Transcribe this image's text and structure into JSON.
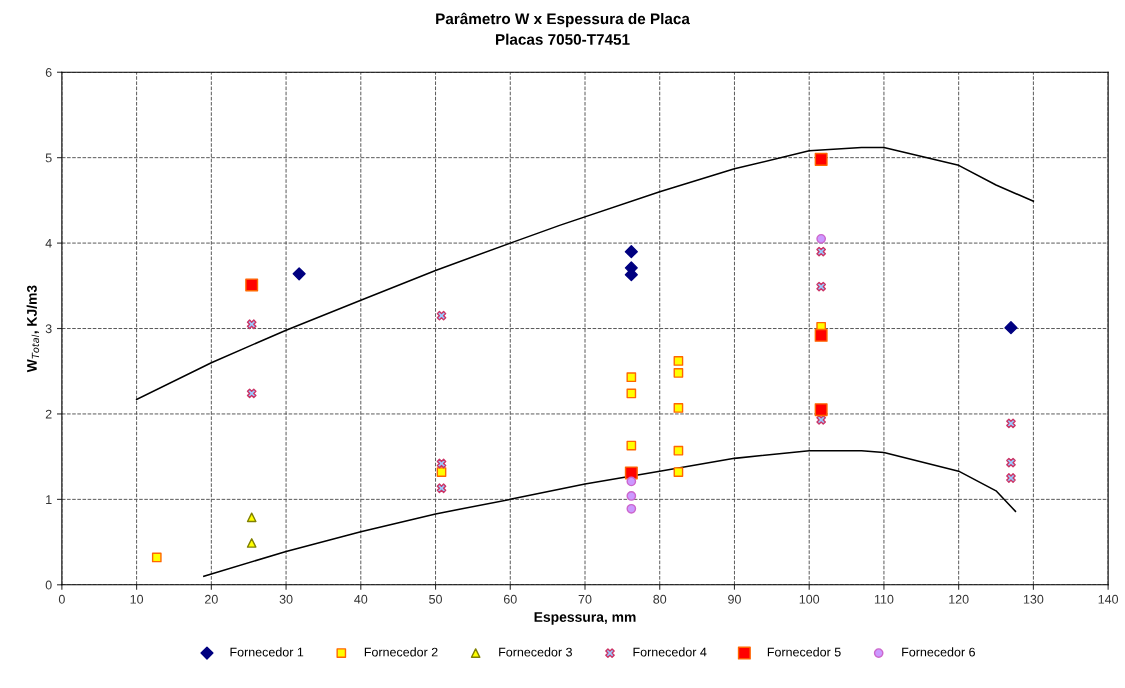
{
  "chart_data": {
    "type": "scatter",
    "title": "Parâmetro W x Espessura de Placa",
    "subtitle": "Placas 7050-T7451",
    "xlabel": "Espessura, mm",
    "ylabel": "W$_{Total}$, KJ/m3",
    "xlim": [
      0,
      140
    ],
    "xticks": [
      0,
      10,
      20,
      30,
      40,
      50,
      60,
      70,
      80,
      90,
      100,
      110,
      120,
      130,
      140
    ],
    "ylim": [
      0,
      6
    ],
    "yticks": [
      0,
      1,
      2,
      3,
      4,
      5,
      6
    ],
    "grid": true,
    "legend": "bottom",
    "series": [
      {
        "name": "Fornecedor 1",
        "color": "#000080",
        "marker": "diamond",
        "x": [
          31.75,
          76.2,
          76.2,
          76.2,
          127
        ],
        "values": [
          3.64,
          3.9,
          3.71,
          3.63,
          3.01
        ]
      },
      {
        "name": "Fornecedor 2",
        "color": "#ffff00",
        "marker": "square",
        "x": [
          12.7,
          50.8,
          76.2,
          76.2,
          76.2,
          82.5,
          82.5,
          82.5,
          82.5,
          82.5,
          101.6
        ],
        "values": [
          0.32,
          1.32,
          2.43,
          2.24,
          1.63,
          2.62,
          2.48,
          2.07,
          1.57,
          1.32,
          3.02
        ]
      },
      {
        "name": "Fornecedor 3",
        "color": "#ffff00",
        "marker": "triangle",
        "x": [
          25.4,
          25.4
        ],
        "values": [
          0.79,
          0.49
        ]
      },
      {
        "name": "Fornecedor 4",
        "color": "#99ccff",
        "marker": "cross",
        "x": [
          25.4,
          25.4,
          50.8,
          50.8,
          50.8,
          101.6,
          101.6,
          101.6,
          127,
          127,
          127
        ],
        "values": [
          3.05,
          2.24,
          3.15,
          1.42,
          1.13,
          3.9,
          3.49,
          1.93,
          1.89,
          1.43,
          1.25
        ]
      },
      {
        "name": "Fornecedor 5",
        "color": "#ff0000",
        "marker": "square",
        "x": [
          25.4,
          101.6,
          101.6,
          101.6,
          76.2
        ],
        "values": [
          3.51,
          4.98,
          2.92,
          2.05,
          1.31
        ]
      },
      {
        "name": "Fornecedor 6",
        "color": "#cc99ff",
        "marker": "circle",
        "x": [
          101.6,
          76.2,
          76.2,
          76.2
        ],
        "values": [
          4.05,
          1.21,
          1.04,
          0.89
        ]
      },
      {
        "type": "line",
        "color": "#000000",
        "marker": "none",
        "x": [
          10,
          20,
          30,
          40,
          50,
          60,
          66.7,
          80,
          90,
          100,
          107,
          110,
          120,
          125,
          130
        ],
        "values": [
          2.17,
          2.6,
          2.98,
          3.33,
          3.68,
          4.0,
          4.21,
          4.6,
          4.87,
          5.08,
          5.12,
          5.12,
          4.91,
          4.68,
          4.49
        ]
      },
      {
        "type": "line",
        "color": "#000000",
        "marker": "none",
        "x": [
          19,
          30,
          40,
          50,
          60,
          70,
          80,
          90,
          100,
          107,
          110,
          120,
          125,
          127.6
        ],
        "values": [
          0.1,
          0.39,
          0.62,
          0.83,
          1.0,
          1.18,
          1.33,
          1.48,
          1.57,
          1.57,
          1.55,
          1.33,
          1.1,
          0.86
        ]
      }
    ]
  }
}
